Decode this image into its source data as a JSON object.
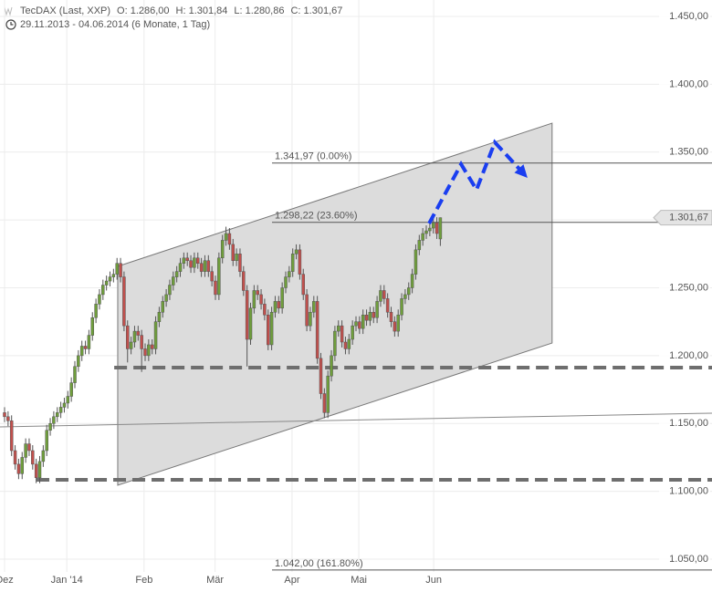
{
  "chart_data": {
    "type": "candlestick",
    "header_title": "TecDAX (Last, XXP)",
    "ohlc_texts": [
      "O: 1.286,00",
      "H: 1.301,84",
      "L: 1.280,86",
      "C: 1.301,67"
    ],
    "period": "29.11.2013 - 04.06.2014 (6 Monate, 1 Tag)",
    "up_color": "#6f9e3c",
    "down_color": "#c0504d",
    "xlim": [
      -1.3,
      201.3
    ],
    "ylim": [
      1025.8,
      1462.1
    ],
    "grid": true,
    "yticks": [
      {
        "value": 1050,
        "label": "1.050,00"
      },
      {
        "value": 1100,
        "label": "1.100,00"
      },
      {
        "value": 1150,
        "label": "1.150,00"
      },
      {
        "value": 1200,
        "label": "1.200,00"
      },
      {
        "value": 1250,
        "label": "1.250,00"
      },
      {
        "value": 1300,
        "label": "1.300,00"
      },
      {
        "value": 1350,
        "label": "1.350,00"
      },
      {
        "value": 1400,
        "label": "1.400,00"
      },
      {
        "value": 1450,
        "label": "1.450,00"
      }
    ],
    "xticks": [
      {
        "value": 0,
        "label": "Dez"
      },
      {
        "value": 17.7,
        "label": "Jan '14"
      },
      {
        "value": 39.7,
        "label": "Feb"
      },
      {
        "value": 59.9,
        "label": "Mär"
      },
      {
        "value": 81.8,
        "label": "Apr"
      },
      {
        "value": 100.8,
        "label": "Mai"
      },
      {
        "value": 122.1,
        "label": "Jun"
      }
    ],
    "candles": [
      [
        1158,
        1162,
        1151,
        1155
      ],
      [
        1155,
        1159,
        1148,
        1152
      ],
      [
        1152,
        1156,
        1126,
        1130
      ],
      [
        1130,
        1134,
        1116,
        1120
      ],
      [
        1120,
        1124,
        1109,
        1113
      ],
      [
        1113,
        1129,
        1109,
        1125
      ],
      [
        1125,
        1139,
        1121,
        1135
      ],
      [
        1135,
        1139,
        1126,
        1130
      ],
      [
        1130,
        1134,
        1116,
        1120
      ],
      [
        1120,
        1124,
        1106,
        1110
      ],
      [
        1110,
        1126,
        1106,
        1122
      ],
      [
        1122,
        1134,
        1118,
        1130
      ],
      [
        1130,
        1149,
        1126,
        1145
      ],
      [
        1145,
        1154,
        1141,
        1150
      ],
      [
        1150,
        1159,
        1146,
        1155
      ],
      [
        1155,
        1162,
        1151,
        1158
      ],
      [
        1158,
        1166,
        1154,
        1162
      ],
      [
        1162,
        1169,
        1158,
        1165
      ],
      [
        1165,
        1174,
        1161,
        1170
      ],
      [
        1170,
        1184,
        1166,
        1180
      ],
      [
        1180,
        1196,
        1176,
        1192
      ],
      [
        1192,
        1204,
        1188,
        1200
      ],
      [
        1200,
        1211,
        1196,
        1207
      ],
      [
        1207,
        1211,
        1201,
        1205
      ],
      [
        1205,
        1219,
        1201,
        1215
      ],
      [
        1215,
        1232,
        1211,
        1228
      ],
      [
        1228,
        1242,
        1224,
        1238
      ],
      [
        1238,
        1249,
        1234,
        1245
      ],
      [
        1245,
        1256,
        1241,
        1252
      ],
      [
        1252,
        1259,
        1248,
        1255
      ],
      [
        1255,
        1262,
        1251,
        1258
      ],
      [
        1258,
        1264,
        1254,
        1260
      ],
      [
        1260,
        1272,
        1256,
        1268
      ],
      [
        1268,
        1272,
        1254,
        1258
      ],
      [
        1258,
        1262,
        1218,
        1222
      ],
      [
        1222,
        1226,
        1195,
        1205
      ],
      [
        1205,
        1214,
        1201,
        1210
      ],
      [
        1210,
        1222,
        1206,
        1218
      ],
      [
        1218,
        1222,
        1211,
        1215
      ],
      [
        1215,
        1219,
        1188,
        1205
      ],
      [
        1205,
        1209,
        1196,
        1200
      ],
      [
        1200,
        1212,
        1196,
        1208
      ],
      [
        1208,
        1212,
        1201,
        1205
      ],
      [
        1205,
        1229,
        1201,
        1225
      ],
      [
        1225,
        1236,
        1221,
        1232
      ],
      [
        1232,
        1244,
        1228,
        1240
      ],
      [
        1240,
        1249,
        1236,
        1245
      ],
      [
        1245,
        1256,
        1241,
        1252
      ],
      [
        1252,
        1262,
        1248,
        1258
      ],
      [
        1258,
        1266,
        1254,
        1262
      ],
      [
        1262,
        1272,
        1258,
        1268
      ],
      [
        1268,
        1276,
        1264,
        1272
      ],
      [
        1272,
        1276,
        1266,
        1270
      ],
      [
        1270,
        1274,
        1261,
        1265
      ],
      [
        1265,
        1276,
        1261,
        1272
      ],
      [
        1272,
        1276,
        1264,
        1268
      ],
      [
        1268,
        1272,
        1258,
        1262
      ],
      [
        1262,
        1274,
        1258,
        1270
      ],
      [
        1270,
        1274,
        1258,
        1262
      ],
      [
        1262,
        1266,
        1251,
        1255
      ],
      [
        1255,
        1259,
        1241,
        1245
      ],
      [
        1245,
        1276,
        1241,
        1272
      ],
      [
        1272,
        1289,
        1268,
        1285
      ],
      [
        1285,
        1295,
        1281,
        1290
      ],
      [
        1290,
        1294,
        1278,
        1282
      ],
      [
        1282,
        1286,
        1266,
        1270
      ],
      [
        1270,
        1279,
        1266,
        1275
      ],
      [
        1275,
        1279,
        1258,
        1262
      ],
      [
        1262,
        1266,
        1244,
        1248
      ],
      [
        1248,
        1252,
        1192,
        1212
      ],
      [
        1212,
        1239,
        1208,
        1235
      ],
      [
        1235,
        1252,
        1231,
        1248
      ],
      [
        1248,
        1252,
        1241,
        1245
      ],
      [
        1245,
        1249,
        1234,
        1238
      ],
      [
        1238,
        1242,
        1226,
        1230
      ],
      [
        1230,
        1234,
        1204,
        1208
      ],
      [
        1208,
        1236,
        1204,
        1232
      ],
      [
        1232,
        1244,
        1228,
        1240
      ],
      [
        1240,
        1244,
        1231,
        1235
      ],
      [
        1235,
        1254,
        1231,
        1250
      ],
      [
        1250,
        1262,
        1246,
        1258
      ],
      [
        1258,
        1266,
        1254,
        1262
      ],
      [
        1262,
        1279,
        1258,
        1275
      ],
      [
        1275,
        1282,
        1271,
        1278
      ],
      [
        1278,
        1282,
        1256,
        1260
      ],
      [
        1260,
        1264,
        1241,
        1245
      ],
      [
        1245,
        1249,
        1218,
        1222
      ],
      [
        1222,
        1236,
        1218,
        1232
      ],
      [
        1232,
        1244,
        1228,
        1240
      ],
      [
        1240,
        1244,
        1194,
        1198
      ],
      [
        1198,
        1202,
        1168,
        1172
      ],
      [
        1172,
        1176,
        1154,
        1158
      ],
      [
        1158,
        1189,
        1154,
        1185
      ],
      [
        1185,
        1204,
        1181,
        1200
      ],
      [
        1200,
        1222,
        1196,
        1218
      ],
      [
        1218,
        1226,
        1214,
        1222
      ],
      [
        1222,
        1226,
        1206,
        1210
      ],
      [
        1210,
        1214,
        1201,
        1205
      ],
      [
        1205,
        1216,
        1201,
        1212
      ],
      [
        1212,
        1226,
        1208,
        1222
      ],
      [
        1222,
        1229,
        1218,
        1225
      ],
      [
        1225,
        1229,
        1216,
        1220
      ],
      [
        1220,
        1234,
        1216,
        1230
      ],
      [
        1230,
        1234,
        1222,
        1226
      ],
      [
        1226,
        1236,
        1222,
        1232
      ],
      [
        1232,
        1236,
        1224,
        1228
      ],
      [
        1228,
        1244,
        1224,
        1240
      ],
      [
        1240,
        1252,
        1236,
        1248
      ],
      [
        1248,
        1252,
        1238,
        1242
      ],
      [
        1242,
        1246,
        1228,
        1232
      ],
      [
        1232,
        1236,
        1221,
        1225
      ],
      [
        1225,
        1229,
        1214,
        1218
      ],
      [
        1218,
        1234,
        1214,
        1230
      ],
      [
        1230,
        1246,
        1226,
        1242
      ],
      [
        1242,
        1249,
        1238,
        1245
      ],
      [
        1245,
        1254,
        1241,
        1250
      ],
      [
        1250,
        1264,
        1246,
        1260
      ],
      [
        1260,
        1282,
        1256,
        1278
      ],
      [
        1278,
        1289,
        1274,
        1285
      ],
      [
        1285,
        1294,
        1281,
        1290
      ],
      [
        1290,
        1296,
        1286,
        1292
      ],
      [
        1292,
        1298,
        1288,
        1294
      ],
      [
        1294,
        1302,
        1290,
        1298
      ],
      [
        1298,
        1302,
        1286,
        1290
      ],
      [
        1286,
        1301.84,
        1280.86,
        1301.67
      ]
    ],
    "channel": {
      "x": [
        32.2,
        155.8,
        155.8,
        32.2
      ],
      "y": [
        1265.8,
        1371.3,
        1209.3,
        1104.5
      ]
    },
    "trendline": {
      "x": [
        -1.3,
        201.3
      ],
      "y": [
        1147.5,
        1157.6
      ]
    },
    "support_levels": [
      {
        "x": [
          31.2,
          201.3
        ],
        "y": [
          1191.2,
          1191.2
        ]
      },
      {
        "x": [
          9.1,
          201.3
        ],
        "y": [
          1108.5,
          1108.5
        ]
      }
    ],
    "fib_levels": [
      {
        "value": 1341.97,
        "label": "1.341,97 (0.00%)"
      },
      {
        "value": 1298.22,
        "label": "1.298,22 (23.60%)"
      },
      {
        "value": 1042.0,
        "label": "1.042,00 (161.80%)"
      }
    ],
    "fib_start_x": 76.1,
    "forecast": {
      "x": [
        120.8,
        129.9,
        134.3,
        139.5,
        148.1
      ],
      "y": [
        1297.4,
        1341.1,
        1322.3,
        1357.2,
        1333.0
      ],
      "color": "#1a3ef0"
    },
    "last_price": {
      "value": 1301.67,
      "label": "1.301,67"
    }
  }
}
